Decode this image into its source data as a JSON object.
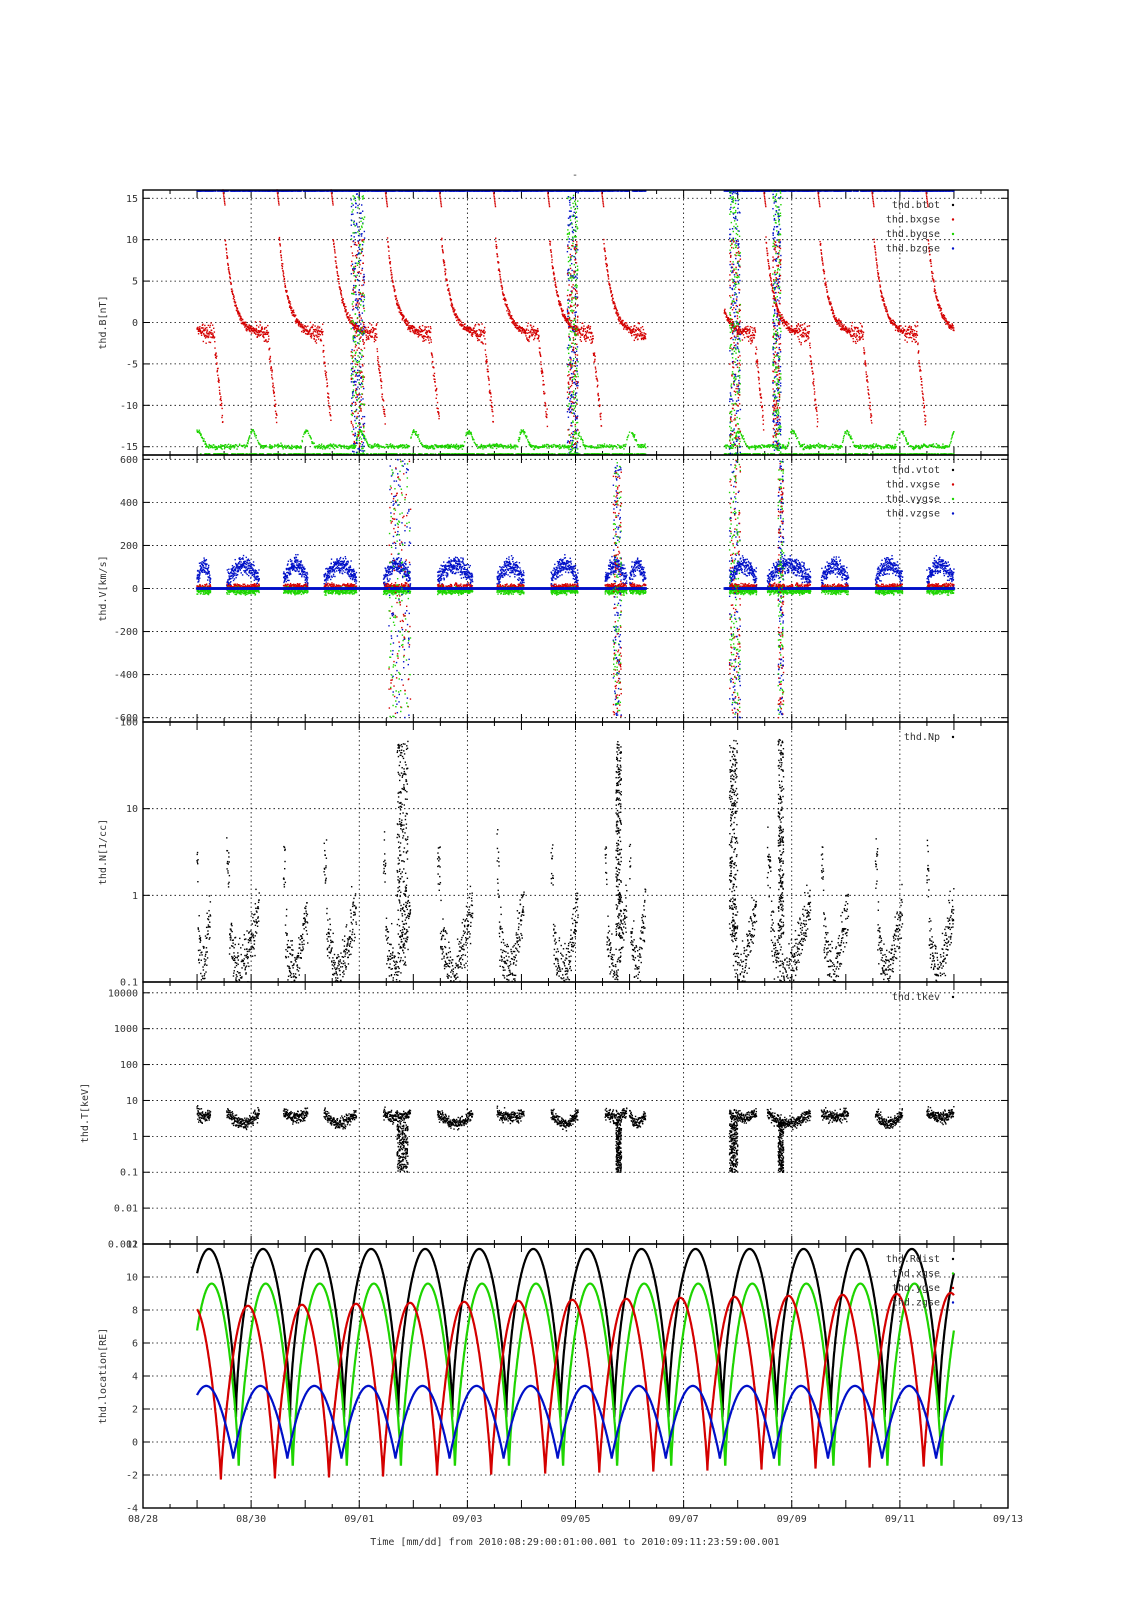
{
  "figure": {
    "top_mark": "-",
    "time_axis_title": "Time [mm/dd]  from 2010:08:29:00:01:00.001  to  2010:09:11:23:59:00.001"
  },
  "colors": {
    "black": "#000000",
    "red": "#d40000",
    "green": "#1ed400",
    "blue": "#0010c8"
  },
  "chart_data": [
    {
      "type": "scatter",
      "ylabel": "thd.B[nT]",
      "ylim": [
        -16,
        16
      ],
      "yscale": "linear",
      "yticks": [
        {
          "value": -15,
          "label": "-15"
        },
        {
          "value": -10,
          "label": "-10"
        },
        {
          "value": -5,
          "label": "-5"
        },
        {
          "value": 0,
          "label": "0"
        },
        {
          "value": 5,
          "label": "5"
        },
        {
          "value": 10,
          "label": "10"
        },
        {
          "value": 15,
          "label": "15"
        }
      ],
      "legend_position": "top-right",
      "series": [
        {
          "name": "thd.btot",
          "color": "black"
        },
        {
          "name": "thd.bxgse",
          "color": "red"
        },
        {
          "name": "thd.bygse",
          "color": "green"
        },
        {
          "name": "thd.bzgse",
          "color": "blue"
        }
      ]
    },
    {
      "type": "scatter",
      "ylabel": "thd.V[km/s]",
      "ylim": [
        -620,
        620
      ],
      "yscale": "linear",
      "yticks": [
        {
          "value": -600,
          "label": "-600"
        },
        {
          "value": -400,
          "label": "-400"
        },
        {
          "value": -200,
          "label": "-200"
        },
        {
          "value": 0,
          "label": "0"
        },
        {
          "value": 200,
          "label": "200"
        },
        {
          "value": 400,
          "label": "400"
        },
        {
          "value": 600,
          "label": "600"
        }
      ],
      "legend_position": "top-right",
      "series": [
        {
          "name": "thd.vtot",
          "color": "black"
        },
        {
          "name": "thd.vxgse",
          "color": "red"
        },
        {
          "name": "thd.vygse",
          "color": "green"
        },
        {
          "name": "thd.vzgse",
          "color": "blue"
        }
      ]
    },
    {
      "type": "scatter",
      "ylabel": "thd.N[1/cc]",
      "ylim": [
        0.1,
        100
      ],
      "yscale": "log",
      "yticks": [
        {
          "value": 0.1,
          "label": "0.1"
        },
        {
          "value": 1,
          "label": "1"
        },
        {
          "value": 10,
          "label": "10"
        },
        {
          "value": 100,
          "label": "100"
        }
      ],
      "legend_position": "top-right",
      "series": [
        {
          "name": "thd.Np",
          "color": "black"
        }
      ]
    },
    {
      "type": "scatter",
      "ylabel": "thd.T[keV]",
      "ylim": [
        0.001,
        20000
      ],
      "yscale": "log",
      "yticks": [
        {
          "value": 0.001,
          "label": "0.001"
        },
        {
          "value": 0.01,
          "label": "0.01"
        },
        {
          "value": 0.1,
          "label": "0.1"
        },
        {
          "value": 1,
          "label": "1"
        },
        {
          "value": 10,
          "label": "10"
        },
        {
          "value": 100,
          "label": "100"
        },
        {
          "value": 1000,
          "label": "1000"
        },
        {
          "value": 10000,
          "label": "10000"
        }
      ],
      "legend_position": "top-right",
      "series": [
        {
          "name": "thd.tkev",
          "color": "black"
        }
      ]
    },
    {
      "type": "line",
      "ylabel": "thd.location[RE]",
      "ylim": [
        -4,
        12
      ],
      "yscale": "linear",
      "yticks": [
        {
          "value": -4,
          "label": "-4"
        },
        {
          "value": -2,
          "label": "-2"
        },
        {
          "value": 0,
          "label": "0"
        },
        {
          "value": 2,
          "label": "2"
        },
        {
          "value": 4,
          "label": "4"
        },
        {
          "value": 6,
          "label": "6"
        },
        {
          "value": 8,
          "label": "8"
        },
        {
          "value": 10,
          "label": "10"
        },
        {
          "value": 12,
          "label": "12"
        }
      ],
      "legend_position": "top-right",
      "series": [
        {
          "name": "thd.Rdist",
          "color": "black"
        },
        {
          "name": "thd.xgse",
          "color": "green"
        },
        {
          "name": "thd.ygse",
          "color": "red"
        },
        {
          "name": "thd.zgse",
          "color": "blue"
        }
      ]
    }
  ],
  "x_axis": {
    "range_days": [
      "08/28",
      "09/13"
    ],
    "ticks": [
      {
        "day": 0,
        "label": "08/28"
      },
      {
        "day": 2,
        "label": "08/30"
      },
      {
        "day": 4,
        "label": "09/01"
      },
      {
        "day": 6,
        "label": "09/03"
      },
      {
        "day": 8,
        "label": "09/05"
      },
      {
        "day": 10,
        "label": "09/07"
      },
      {
        "day": 12,
        "label": "09/09"
      },
      {
        "day": 14,
        "label": "09/11"
      },
      {
        "day": 16,
        "label": "09/13"
      }
    ],
    "data_coverage": [
      "08/29 00:01",
      "09/11 23:59"
    ],
    "orbit_period_days": 1.0
  }
}
